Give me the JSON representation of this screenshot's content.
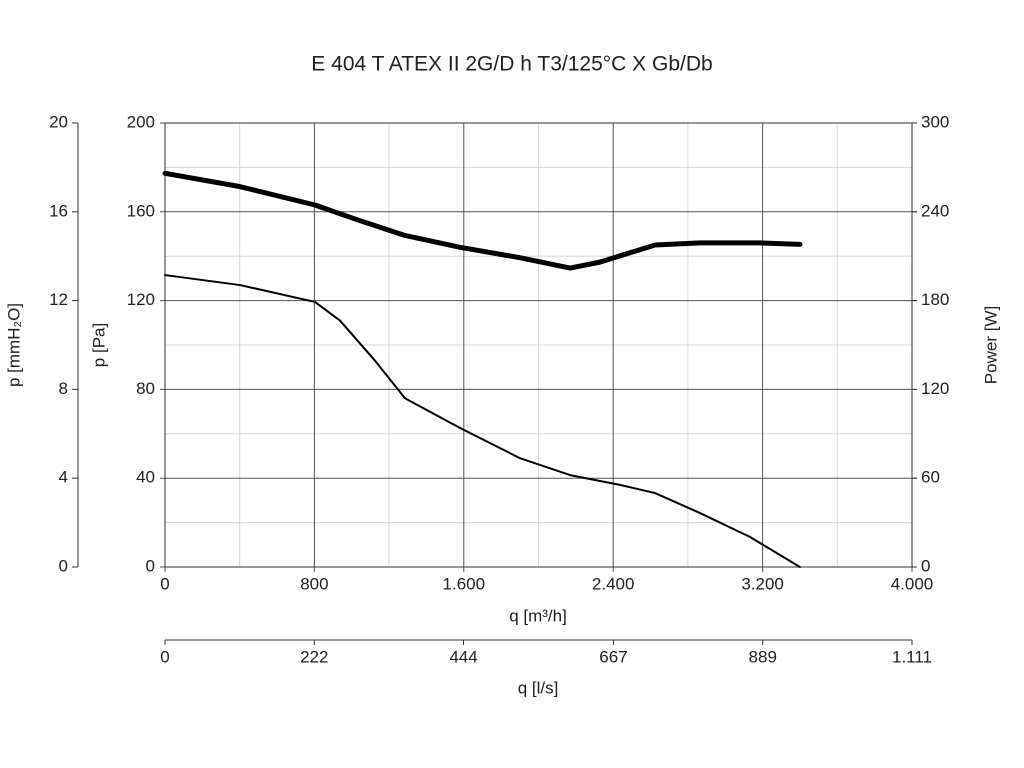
{
  "chart_data": {
    "type": "line",
    "title": "E 404 T ATEX II 2G/D h T3/125°C X Gb/Db",
    "xlabel": "q [m³/h]",
    "xlim": [
      0,
      4000
    ],
    "xticks": [
      0,
      800,
      {
        "value": 1600,
        "label": "1.600"
      },
      {
        "value": 2400,
        "label": "2.400"
      },
      {
        "value": 3200,
        "label": "3.200"
      },
      {
        "value": 4000,
        "label": "4.000"
      }
    ],
    "xminorticks": [
      400,
      1200,
      2000,
      2800,
      3600
    ],
    "x2label": "q [l/s]",
    "x2lim": [
      0,
      1111
    ],
    "x2ticks": [
      0,
      222,
      444,
      667,
      889,
      {
        "value": 1111,
        "label": "1.111"
      }
    ],
    "ylabel": "p [Pa]",
    "ylim": [
      0,
      200
    ],
    "yticks": [
      0,
      40,
      80,
      120,
      160,
      200
    ],
    "yminorticks": [
      20,
      60,
      100,
      140,
      180
    ],
    "y2label": "Power [W]",
    "y2lim": [
      0,
      300
    ],
    "y2ticks": [
      0,
      60,
      120,
      180,
      240,
      300
    ],
    "y3label": "p [mmH₂O]",
    "y3lim": [
      0,
      20
    ],
    "y3ticks": [
      0,
      4,
      8,
      12,
      16,
      20
    ],
    "grid": true,
    "series": [
      {
        "color": "#000000",
        "width": 2,
        "x": [
          0,
          402,
          803,
          937,
          1124,
          1285,
          1580,
          1901,
          2169,
          2436,
          2624,
          2865,
          3133,
          3400
        ],
        "values": [
          131.5,
          127,
          119.4,
          111,
          93,
          76,
          62.6,
          49,
          41.4,
          37,
          33.3,
          24.3,
          13.5,
          0
        ]
      },
      {
        "color": "#000000",
        "width": 5,
        "axis": "y2",
        "x": [
          0,
          402,
          803,
          1044,
          1285,
          1580,
          1901,
          2169,
          2329,
          2624,
          2865,
          3186,
          3400
        ],
        "values": [
          266,
          257,
          244.6,
          234,
          224,
          216,
          209,
          202,
          206,
          217.6,
          219,
          219,
          218
        ]
      }
    ]
  }
}
